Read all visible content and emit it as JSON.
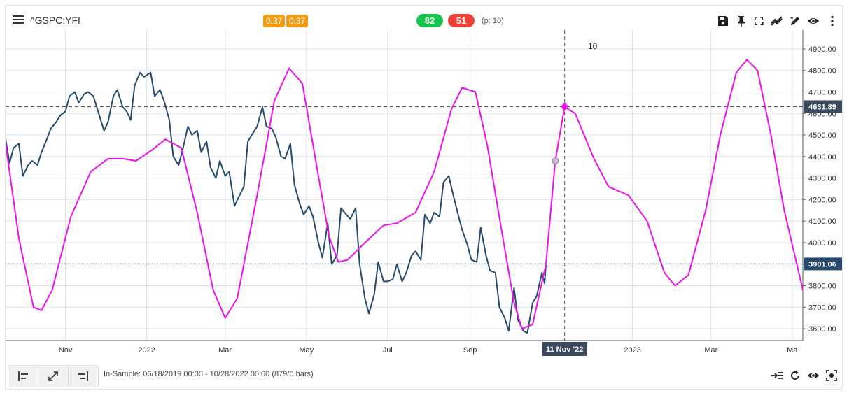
{
  "header": {
    "symbol": "^GSPC:YFI",
    "badge_left": "0.37",
    "badge_right": "0.37",
    "score_green": "82",
    "score_red": "51",
    "period_info": "(p: 10)"
  },
  "toolbar_icons": [
    "save-icon",
    "pin-icon",
    "fullscreen-icon",
    "compare-icon",
    "draw-icon",
    "eye-icon",
    "more-vertical-icon"
  ],
  "footer": {
    "sample_info": "In-Sample: 06/18/2019 00:00 - 10/28/2022 00:00 (879/0 bars)",
    "left_buttons": [
      "align-left-icon",
      "expand-icon",
      "align-right-icon"
    ],
    "right_icons": [
      "indent-icon",
      "refresh-icon",
      "eye-icon",
      "focus-icon"
    ]
  },
  "colors": {
    "price_line": "#274b6e",
    "cycle_line": "#ee11ee",
    "label_dark": "#3a4a5c",
    "price_label": "#274b6e",
    "green": "#16c24a",
    "red": "#ee4036",
    "orange": "#f39c12"
  },
  "chart_data": {
    "type": "line",
    "x_ticks": [
      {
        "date": "2021-11-01",
        "label": "Nov"
      },
      {
        "date": "2022-01-01",
        "label": "2022"
      },
      {
        "date": "2022-03-01",
        "label": "Mar"
      },
      {
        "date": "2022-05-01",
        "label": "May"
      },
      {
        "date": "2022-07-01",
        "label": "Jul"
      },
      {
        "date": "2022-09-01",
        "label": "Sep"
      },
      {
        "date": "2023-01-01",
        "label": "2023"
      },
      {
        "date": "2023-03-01",
        "label": "Mar"
      },
      {
        "date": "2023-05-01",
        "label": "Ma"
      }
    ],
    "xlim": [
      "2021-09-17",
      "2023-05-09"
    ],
    "ylim": [
      3545,
      4955
    ],
    "y_ticks": [
      3600,
      3700,
      3800,
      3900,
      4000,
      4100,
      4200,
      4300,
      4400,
      4500,
      4600,
      4700,
      4800,
      4900
    ],
    "y_tick_labels": [
      "3600.00",
      "3700.00",
      "3800.00",
      "3900.00",
      "4000.00",
      "4100.00",
      "4200.00",
      "4300.00",
      "4400.00",
      "4500.00",
      "4600.00",
      "4700.00",
      "4800.00",
      "4900.00"
    ],
    "crosshair": {
      "date": "2022-11-11",
      "date_label": "11 Nov '22",
      "value": 4631.89,
      "value_label": "4631.89",
      "cycle_label": "10"
    },
    "last_price": {
      "value": 3901.06,
      "label": "3901.06"
    },
    "series": [
      {
        "key": "price",
        "points": [
          [
            "2021-09-17",
            4480
          ],
          [
            "2021-09-20",
            4370
          ],
          [
            "2021-09-23",
            4440
          ],
          [
            "2021-09-27",
            4460
          ],
          [
            "2021-09-30",
            4310
          ],
          [
            "2021-10-04",
            4360
          ],
          [
            "2021-10-07",
            4380
          ],
          [
            "2021-10-11",
            4360
          ],
          [
            "2021-10-14",
            4420
          ],
          [
            "2021-10-18",
            4480
          ],
          [
            "2021-10-21",
            4530
          ],
          [
            "2021-10-25",
            4560
          ],
          [
            "2021-10-28",
            4590
          ],
          [
            "2021-11-01",
            4610
          ],
          [
            "2021-11-04",
            4680
          ],
          [
            "2021-11-08",
            4700
          ],
          [
            "2021-11-11",
            4650
          ],
          [
            "2021-11-15",
            4690
          ],
          [
            "2021-11-18",
            4700
          ],
          [
            "2021-11-22",
            4680
          ],
          [
            "2021-11-26",
            4600
          ],
          [
            "2021-11-30",
            4520
          ],
          [
            "2021-12-03",
            4560
          ],
          [
            "2021-12-07",
            4680
          ],
          [
            "2021-12-10",
            4710
          ],
          [
            "2021-12-14",
            4630
          ],
          [
            "2021-12-17",
            4610
          ],
          [
            "2021-12-20",
            4570
          ],
          [
            "2021-12-23",
            4730
          ],
          [
            "2021-12-27",
            4790
          ],
          [
            "2021-12-30",
            4770
          ],
          [
            "2022-01-04",
            4790
          ],
          [
            "2022-01-07",
            4680
          ],
          [
            "2022-01-11",
            4710
          ],
          [
            "2022-01-14",
            4660
          ],
          [
            "2022-01-18",
            4570
          ],
          [
            "2022-01-21",
            4400
          ],
          [
            "2022-01-25",
            4360
          ],
          [
            "2022-01-28",
            4430
          ],
          [
            "2022-02-01",
            4540
          ],
          [
            "2022-02-04",
            4500
          ],
          [
            "2022-02-08",
            4520
          ],
          [
            "2022-02-11",
            4420
          ],
          [
            "2022-02-15",
            4470
          ],
          [
            "2022-02-18",
            4350
          ],
          [
            "2022-02-22",
            4300
          ],
          [
            "2022-02-25",
            4380
          ],
          [
            "2022-03-01",
            4310
          ],
          [
            "2022-03-04",
            4330
          ],
          [
            "2022-03-08",
            4170
          ],
          [
            "2022-03-11",
            4210
          ],
          [
            "2022-03-15",
            4260
          ],
          [
            "2022-03-18",
            4470
          ],
          [
            "2022-03-22",
            4510
          ],
          [
            "2022-03-25",
            4540
          ],
          [
            "2022-03-29",
            4630
          ],
          [
            "2022-04-01",
            4540
          ],
          [
            "2022-04-05",
            4530
          ],
          [
            "2022-04-08",
            4490
          ],
          [
            "2022-04-12",
            4400
          ],
          [
            "2022-04-15",
            4390
          ],
          [
            "2022-04-19",
            4460
          ],
          [
            "2022-04-22",
            4270
          ],
          [
            "2022-04-26",
            4180
          ],
          [
            "2022-04-29",
            4130
          ],
          [
            "2022-05-03",
            4170
          ],
          [
            "2022-05-06",
            4120
          ],
          [
            "2022-05-10",
            4000
          ],
          [
            "2022-05-13",
            3930
          ],
          [
            "2022-05-17",
            4090
          ],
          [
            "2022-05-20",
            3900
          ],
          [
            "2022-05-24",
            3940
          ],
          [
            "2022-05-27",
            4160
          ],
          [
            "2022-05-31",
            4130
          ],
          [
            "2022-06-03",
            4110
          ],
          [
            "2022-06-07",
            4160
          ],
          [
            "2022-06-10",
            3900
          ],
          [
            "2022-06-14",
            3740
          ],
          [
            "2022-06-17",
            3670
          ],
          [
            "2022-06-21",
            3760
          ],
          [
            "2022-06-24",
            3910
          ],
          [
            "2022-06-28",
            3820
          ],
          [
            "2022-07-01",
            3820
          ],
          [
            "2022-07-05",
            3830
          ],
          [
            "2022-07-08",
            3900
          ],
          [
            "2022-07-12",
            3820
          ],
          [
            "2022-07-15",
            3860
          ],
          [
            "2022-07-19",
            3940
          ],
          [
            "2022-07-22",
            3960
          ],
          [
            "2022-07-26",
            3920
          ],
          [
            "2022-07-29",
            4130
          ],
          [
            "2022-08-02",
            4090
          ],
          [
            "2022-08-05",
            4140
          ],
          [
            "2022-08-09",
            4120
          ],
          [
            "2022-08-12",
            4280
          ],
          [
            "2022-08-16",
            4310
          ],
          [
            "2022-08-19",
            4230
          ],
          [
            "2022-08-23",
            4130
          ],
          [
            "2022-08-26",
            4060
          ],
          [
            "2022-08-30",
            3990
          ],
          [
            "2022-09-02",
            3920
          ],
          [
            "2022-09-06",
            3910
          ],
          [
            "2022-09-09",
            4070
          ],
          [
            "2022-09-13",
            3940
          ],
          [
            "2022-09-16",
            3870
          ],
          [
            "2022-09-20",
            3860
          ],
          [
            "2022-09-23",
            3700
          ],
          [
            "2022-09-27",
            3650
          ],
          [
            "2022-09-30",
            3590
          ],
          [
            "2022-10-04",
            3790
          ],
          [
            "2022-10-07",
            3640
          ],
          [
            "2022-10-11",
            3590
          ],
          [
            "2022-10-14",
            3580
          ],
          [
            "2022-10-18",
            3720
          ],
          [
            "2022-10-21",
            3750
          ],
          [
            "2022-10-25",
            3860
          ],
          [
            "2022-10-27",
            3810
          ],
          [
            "2022-10-28",
            3901
          ]
        ]
      },
      {
        "key": "cycle",
        "points": [
          [
            "2021-09-17",
            4460
          ],
          [
            "2021-09-27",
            4020
          ],
          [
            "2021-10-08",
            3700
          ],
          [
            "2021-10-14",
            3685
          ],
          [
            "2021-10-22",
            3780
          ],
          [
            "2021-11-05",
            4120
          ],
          [
            "2021-11-20",
            4330
          ],
          [
            "2021-12-03",
            4390
          ],
          [
            "2021-12-14",
            4390
          ],
          [
            "2021-12-24",
            4380
          ],
          [
            "2022-01-05",
            4430
          ],
          [
            "2022-01-15",
            4480
          ],
          [
            "2022-01-27",
            4440
          ],
          [
            "2022-02-08",
            4140
          ],
          [
            "2022-02-20",
            3780
          ],
          [
            "2022-03-01",
            3650
          ],
          [
            "2022-03-10",
            3740
          ],
          [
            "2022-03-25",
            4220
          ],
          [
            "2022-04-07",
            4660
          ],
          [
            "2022-04-18",
            4810
          ],
          [
            "2022-04-28",
            4740
          ],
          [
            "2022-05-08",
            4380
          ],
          [
            "2022-05-18",
            4030
          ],
          [
            "2022-05-25",
            3910
          ],
          [
            "2022-06-01",
            3920
          ],
          [
            "2022-06-14",
            4000
          ],
          [
            "2022-06-28",
            4080
          ],
          [
            "2022-07-08",
            4090
          ],
          [
            "2022-07-22",
            4140
          ],
          [
            "2022-08-05",
            4330
          ],
          [
            "2022-08-18",
            4620
          ],
          [
            "2022-08-26",
            4720
          ],
          [
            "2022-09-05",
            4700
          ],
          [
            "2022-09-14",
            4450
          ],
          [
            "2022-09-24",
            4080
          ],
          [
            "2022-10-04",
            3720
          ],
          [
            "2022-10-10",
            3600
          ],
          [
            "2022-10-18",
            3620
          ],
          [
            "2022-10-28",
            3900
          ],
          [
            "2022-11-04",
            4380
          ],
          [
            "2022-11-11",
            4630
          ],
          [
            "2022-11-19",
            4600
          ],
          [
            "2022-12-03",
            4390
          ],
          [
            "2022-12-14",
            4260
          ],
          [
            "2022-12-29",
            4220
          ],
          [
            "2023-01-12",
            4100
          ],
          [
            "2023-01-25",
            3860
          ],
          [
            "2023-02-02",
            3800
          ],
          [
            "2023-02-12",
            3850
          ],
          [
            "2023-02-25",
            4150
          ],
          [
            "2023-03-08",
            4500
          ],
          [
            "2023-03-20",
            4790
          ],
          [
            "2023-03-28",
            4850
          ],
          [
            "2023-04-05",
            4800
          ],
          [
            "2023-04-15",
            4500
          ],
          [
            "2023-04-25",
            4150
          ],
          [
            "2023-05-09",
            3780
          ]
        ]
      }
    ],
    "markers": [
      {
        "date": "2022-11-04",
        "value": 4380,
        "style": "hollow"
      },
      {
        "date": "2022-11-11",
        "value": 4631.89,
        "style": "filled"
      }
    ]
  }
}
